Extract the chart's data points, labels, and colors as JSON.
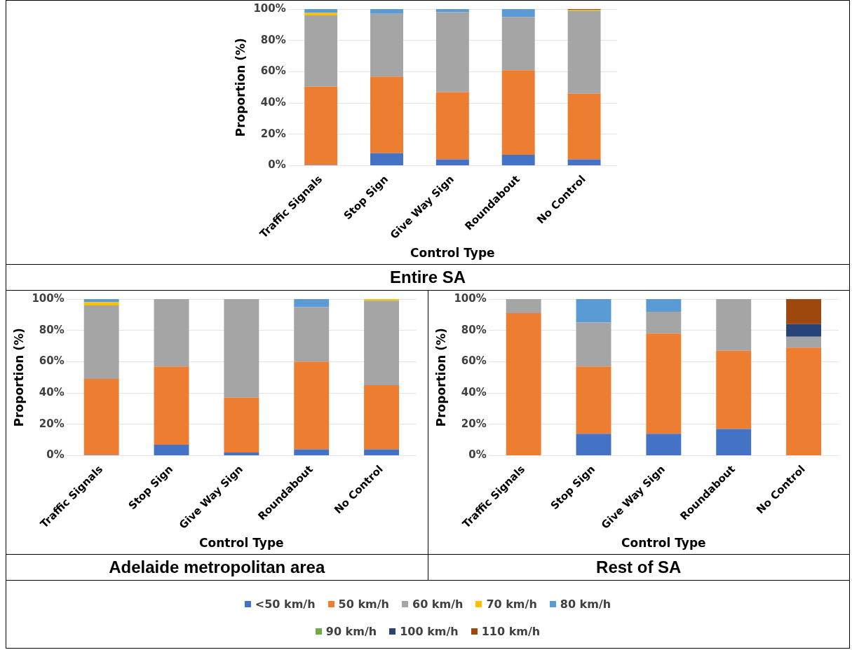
{
  "chart_data": [
    {
      "type": "bar",
      "title": "Entire SA",
      "xlabel": "Control Type",
      "ylabel": "Proportion (%)",
      "stacked": true,
      "grid": "y",
      "legend": "bottom",
      "categories": [
        "Traffic Signals",
        "Stop Sign",
        "Give Way Sign",
        "Roundabout",
        "No Control"
      ],
      "ylim": [
        0,
        100
      ],
      "yticks": [
        {
          "value": 0,
          "label": "0%"
        },
        {
          "value": 20,
          "label": "20%"
        },
        {
          "value": 40,
          "label": "40%"
        },
        {
          "value": 60,
          "label": "60%"
        },
        {
          "value": 80,
          "label": "80%"
        },
        {
          "value": 100,
          "label": "100%"
        }
      ],
      "series": [
        {
          "name": "<50 km/h",
          "color": "#4472c4",
          "values": [
            0.5,
            8,
            4,
            7,
            4
          ]
        },
        {
          "name": "50 km/h",
          "color": "#ed7d31",
          "values": [
            50,
            49,
            43,
            54,
            42
          ]
        },
        {
          "name": "60 km/h",
          "color": "#a5a5a5",
          "values": [
            45.5,
            40,
            51,
            34,
            53
          ]
        },
        {
          "name": "70 km/h",
          "color": "#ffc000",
          "values": [
            1.5,
            0,
            0,
            0,
            0.5
          ]
        },
        {
          "name": "80 km/h",
          "color": "#5b9bd5",
          "values": [
            2.5,
            3,
            2,
            5,
            0
          ]
        },
        {
          "name": "90 km/h",
          "color": "#70ad47",
          "values": [
            0,
            0,
            0,
            0,
            0
          ]
        },
        {
          "name": "100 km/h",
          "color": "#264478",
          "values": [
            0,
            0,
            0,
            0,
            0
          ]
        },
        {
          "name": "110 km/h",
          "color": "#9e480e",
          "values": [
            0,
            0,
            0,
            0,
            0.5
          ]
        }
      ]
    },
    {
      "type": "bar",
      "title": "Adelaide metropolitan area",
      "xlabel": "Control Type",
      "ylabel": "Proportion (%)",
      "stacked": true,
      "grid": "y",
      "categories": [
        "Traffic Signals",
        "Stop Sign",
        "Give Way Sign",
        "Roundabout",
        "No Control"
      ],
      "ylim": [
        0,
        100
      ],
      "yticks": [
        {
          "value": 0,
          "label": "0%"
        },
        {
          "value": 20,
          "label": "20%"
        },
        {
          "value": 40,
          "label": "40%"
        },
        {
          "value": 60,
          "label": "60%"
        },
        {
          "value": 80,
          "label": "80%"
        },
        {
          "value": 100,
          "label": "100%"
        }
      ],
      "series": [
        {
          "color": "#4472c4",
          "values": [
            0.5,
            7,
            2,
            4,
            4
          ]
        },
        {
          "color": "#ed7d31",
          "values": [
            48.5,
            50,
            35,
            56,
            41
          ]
        },
        {
          "color": "#a5a5a5",
          "values": [
            47,
            43,
            63,
            35,
            54
          ]
        },
        {
          "color": "#ffc000",
          "values": [
            2,
            0,
            0,
            0,
            1
          ]
        },
        {
          "color": "#5b9bd5",
          "values": [
            2,
            0,
            0,
            5,
            0
          ]
        },
        {
          "color": "#70ad47",
          "values": [
            0,
            0,
            0,
            0,
            0
          ]
        },
        {
          "color": "#264478",
          "values": [
            0,
            0,
            0,
            0,
            0
          ]
        },
        {
          "color": "#9e480e",
          "values": [
            0,
            0,
            0,
            0,
            0
          ]
        }
      ]
    },
    {
      "type": "bar",
      "title": "Rest of SA",
      "xlabel": "Control Type",
      "ylabel": "Proportion (%)",
      "stacked": true,
      "grid": "y",
      "categories": [
        "Traffic Signals",
        "Stop Sign",
        "Give Way Sign",
        "Roundabout",
        "No Control"
      ],
      "ylim": [
        0,
        100
      ],
      "yticks": [
        {
          "value": 0,
          "label": "0%"
        },
        {
          "value": 20,
          "label": "20%"
        },
        {
          "value": 40,
          "label": "40%"
        },
        {
          "value": 60,
          "label": "60%"
        },
        {
          "value": 80,
          "label": "80%"
        },
        {
          "value": 100,
          "label": "100%"
        }
      ],
      "series": [
        {
          "color": "#4472c4",
          "values": [
            0,
            14,
            14,
            17,
            0
          ]
        },
        {
          "color": "#ed7d31",
          "values": [
            91,
            43,
            64,
            50,
            69
          ]
        },
        {
          "color": "#a5a5a5",
          "values": [
            9,
            28,
            14,
            33,
            7
          ]
        },
        {
          "color": "#ffc000",
          "values": [
            0,
            0,
            0,
            0,
            0
          ]
        },
        {
          "color": "#5b9bd5",
          "values": [
            0,
            15,
            8,
            0,
            0
          ]
        },
        {
          "color": "#70ad47",
          "values": [
            0,
            0,
            0,
            0,
            0
          ]
        },
        {
          "color": "#264478",
          "values": [
            0,
            0,
            0,
            0,
            8
          ]
        },
        {
          "color": "#9e480e",
          "values": [
            0,
            0,
            0,
            0,
            16
          ]
        }
      ]
    }
  ]
}
